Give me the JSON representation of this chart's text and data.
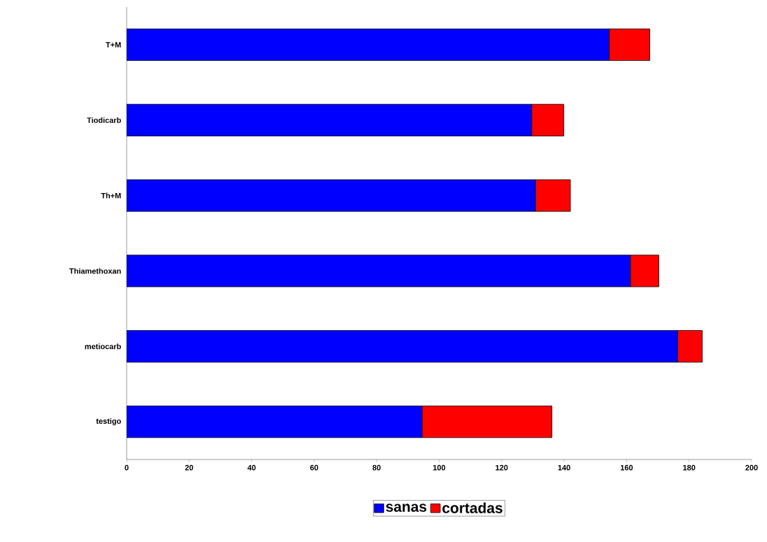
{
  "chart_data": {
    "type": "bar",
    "orientation": "horizontal",
    "stacked": true,
    "categories": [
      "T+M",
      "Tiodicarb",
      "Th+M",
      "Thiamethoxan",
      "metiocarb",
      "testigo"
    ],
    "series": [
      {
        "name": "sanas",
        "color": "#0000ff",
        "values": [
          154.4,
          129.6,
          130.8,
          161.2,
          176.3,
          94.5
        ]
      },
      {
        "name": "cortadas",
        "color": "#ff0000",
        "values": [
          13.0,
          10.3,
          11.2,
          9.1,
          7.9,
          41.6
        ]
      }
    ],
    "xlim": [
      0,
      200
    ],
    "xticks": [
      0,
      20,
      40,
      60,
      80,
      100,
      120,
      140,
      160,
      180,
      200
    ],
    "legend": "bottom"
  }
}
